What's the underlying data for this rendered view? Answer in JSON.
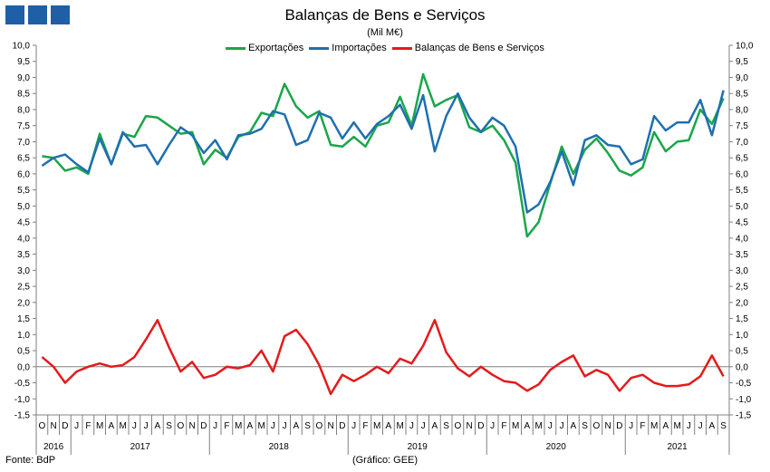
{
  "header": {
    "logo": [
      "logo-square",
      "logo-square",
      "logo-square"
    ]
  },
  "footer": {
    "source": "Fonte: BdP",
    "credit": "(Gráfico: GEE)"
  },
  "chart_data": {
    "type": "line",
    "title": "Balanças de Bens e Serviços",
    "subtitle": "(Mil M€)",
    "legend_position": "top",
    "grid": false,
    "ylim": [
      -1.5,
      10.0
    ],
    "ytick_step": 0.5,
    "months": [
      "O",
      "N",
      "D",
      "J",
      "F",
      "M",
      "A",
      "M",
      "J",
      "J",
      "A",
      "S",
      "O",
      "N",
      "D",
      "J",
      "F",
      "M",
      "A",
      "M",
      "J",
      "J",
      "A",
      "S",
      "O",
      "N",
      "D",
      "J",
      "F",
      "M",
      "A",
      "M",
      "J",
      "J",
      "A",
      "S",
      "O",
      "N",
      "D",
      "J",
      "F",
      "M",
      "A",
      "M",
      "J",
      "J",
      "A",
      "S",
      "O",
      "N",
      "D",
      "J",
      "F",
      "M",
      "A",
      "M",
      "J",
      "J",
      "A",
      "S"
    ],
    "years": [
      {
        "label": "2016",
        "start": 0,
        "count": 3
      },
      {
        "label": "2017",
        "start": 3,
        "count": 12
      },
      {
        "label": "2018",
        "start": 15,
        "count": 12
      },
      {
        "label": "2019",
        "start": 27,
        "count": 12
      },
      {
        "label": "2020",
        "start": 39,
        "count": 12
      },
      {
        "label": "2021",
        "start": 51,
        "count": 9
      }
    ],
    "series": [
      {
        "name": "Exportações",
        "color": "#1aa64a",
        "values": [
          6.55,
          6.5,
          6.1,
          6.2,
          6.0,
          7.25,
          6.3,
          7.25,
          7.15,
          7.8,
          7.75,
          7.5,
          7.25,
          7.3,
          6.3,
          6.75,
          6.5,
          7.15,
          7.3,
          7.9,
          7.8,
          8.8,
          8.1,
          7.75,
          7.95,
          6.9,
          6.85,
          7.15,
          6.85,
          7.5,
          7.6,
          8.4,
          7.5,
          9.1,
          8.1,
          8.3,
          8.45,
          7.45,
          7.3,
          7.5,
          7.05,
          6.35,
          4.05,
          4.5,
          5.7,
          6.85,
          6.0,
          6.75,
          7.1,
          6.65,
          6.1,
          5.95,
          6.2,
          7.3,
          6.7,
          7.0,
          7.05,
          8.0,
          7.55,
          8.35
        ]
      },
      {
        "name": "Importações",
        "color": "#1f6fb0",
        "values": [
          6.25,
          6.5,
          6.6,
          6.3,
          6.05,
          7.1,
          6.3,
          7.3,
          6.85,
          6.9,
          6.3,
          6.9,
          7.45,
          7.2,
          6.65,
          7.05,
          6.45,
          7.2,
          7.25,
          7.4,
          7.95,
          7.85,
          6.9,
          7.05,
          7.9,
          7.75,
          7.1,
          7.6,
          7.1,
          7.55,
          7.8,
          8.15,
          7.4,
          8.45,
          6.7,
          7.8,
          8.5,
          7.75,
          7.3,
          7.75,
          7.5,
          6.85,
          4.8,
          5.05,
          5.75,
          6.7,
          5.65,
          7.05,
          7.2,
          6.9,
          6.85,
          6.3,
          6.45,
          7.8,
          7.35,
          7.6,
          7.6,
          8.3,
          7.2,
          8.6
        ]
      },
      {
        "name": "Balanças de Bens e Serviços",
        "color": "#e31b1b",
        "values": [
          0.3,
          0.0,
          -0.5,
          -0.15,
          0.0,
          0.1,
          0.0,
          0.05,
          0.3,
          0.85,
          1.45,
          0.6,
          -0.15,
          0.15,
          -0.35,
          -0.25,
          0.0,
          -0.05,
          0.05,
          0.5,
          -0.15,
          0.95,
          1.15,
          0.7,
          0.05,
          -0.85,
          -0.25,
          -0.45,
          -0.25,
          0.0,
          -0.2,
          0.25,
          0.1,
          0.65,
          1.45,
          0.45,
          -0.05,
          -0.3,
          0.0,
          -0.25,
          -0.45,
          -0.5,
          -0.75,
          -0.55,
          -0.1,
          0.15,
          0.35,
          -0.3,
          -0.1,
          -0.25,
          -0.75,
          -0.35,
          -0.25,
          -0.5,
          -0.6,
          -0.6,
          -0.55,
          -0.3,
          0.35,
          -0.3
        ]
      }
    ]
  }
}
